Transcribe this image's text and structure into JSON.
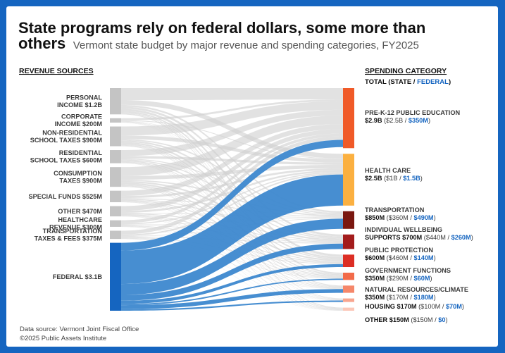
{
  "title": {
    "bold": "State programs rely on federal dollars, some more than others",
    "bold_line1": "State programs rely on federal dollars, some more than",
    "bold_line2": "others",
    "subtitle": "Vermont state budget by major revenue and spending categories, FY2025"
  },
  "left_header": "REVENUE SOURCES",
  "right_header": "SPENDING CATEGORY",
  "total_label": {
    "prefix": "TOTAL (",
    "state": "STATE",
    "sep": " / ",
    "federal": "FEDERAL",
    "suffix": ")"
  },
  "footer": {
    "source": "Data source: Vermont Joint Fiscal Office",
    "copyright": "©2025 Public Assets Institute"
  },
  "colors": {
    "state_flow": "#d0d0d0",
    "federal_flow": "#3d88cf",
    "state_node": "#c4c4c4",
    "federal_node": "#1565c0",
    "frame": "#1565c0"
  },
  "chart_data": {
    "type": "sankey",
    "units": "USD millions",
    "sources": [
      {
        "name": "PERSONAL INCOME",
        "value_label": "$1.2B",
        "value": 1200,
        "kind": "state",
        "label_lines": [
          "PERSONAL",
          "INCOME $1.2B"
        ]
      },
      {
        "name": "CORPORATE INCOME",
        "value_label": "$200M",
        "value": 200,
        "kind": "state",
        "label_lines": [
          "CORPORATE",
          "INCOME $200M"
        ]
      },
      {
        "name": "NON-RESIDENTIAL SCHOOL TAXES",
        "value_label": "$900M",
        "value": 900,
        "kind": "state",
        "label_lines": [
          "NON-RESIDENTIAL",
          "SCHOOL TAXES $900M"
        ]
      },
      {
        "name": "RESIDENTIAL SCHOOL TAXES",
        "value_label": "$600M",
        "value": 600,
        "kind": "state",
        "label_lines": [
          "RESIDENTIAL",
          "SCHOOL TAXES $600M"
        ]
      },
      {
        "name": "CONSUMPTION TAXES",
        "value_label": "$900M",
        "value": 900,
        "kind": "state",
        "label_lines": [
          "CONSUMPTION",
          "TAXES $900M"
        ]
      },
      {
        "name": "SPECIAL FUNDS",
        "value_label": "$525M",
        "value": 525,
        "kind": "state",
        "label_lines": [
          "SPECIAL FUNDS $525M"
        ]
      },
      {
        "name": "OTHER",
        "value_label": "$470M",
        "value": 470,
        "kind": "state",
        "label_lines": [
          "OTHER $470M"
        ]
      },
      {
        "name": "HEALTHCARE REVENUE",
        "value_label": "$300M",
        "value": 300,
        "kind": "state",
        "label_lines": [
          "HEALTHCARE",
          "REVENUE $300M"
        ]
      },
      {
        "name": "TRANSPORTATION TAXES & FEES",
        "value_label": "$375M",
        "value": 375,
        "kind": "state",
        "label_lines": [
          "TRANSPORTATION",
          "TAXES & FEES $375M"
        ]
      },
      {
        "name": "FEDERAL",
        "value_label": "$3.1B",
        "value": 3100,
        "kind": "federal",
        "label_lines": [
          "FEDERAL $3.1B"
        ]
      }
    ],
    "targets": [
      {
        "name": "PRE-K-12 PUBLIC EDUCATION",
        "total_label": "$2.9B",
        "state_label": "$2.5B",
        "federal_label": "$350M",
        "total": 2900,
        "state": 2500,
        "federal": 350,
        "color": "#f05a28",
        "name_lines": [
          "PRE-K-12 PUBLIC EDUCATION"
        ]
      },
      {
        "name": "HEALTH CARE",
        "total_label": "$2.5B",
        "state_label": "$1B",
        "federal_label": "$1.5B",
        "total": 2500,
        "state": 1000,
        "federal": 1500,
        "color": "#fbb040",
        "name_lines": [
          "HEALTH CARE"
        ]
      },
      {
        "name": "TRANSPORTATION",
        "total_label": "$850M",
        "state_label": "$360M",
        "federal_label": "$490M",
        "total": 850,
        "state": 360,
        "federal": 490,
        "color": "#7a1710",
        "name_lines": [
          "TRANSPORTATION"
        ]
      },
      {
        "name": "INDIVIDUAL WELLBEING SUPPORTS",
        "total_label": "$700M",
        "state_label": "$440M",
        "federal_label": "$260M",
        "total": 700,
        "state": 440,
        "federal": 260,
        "color": "#a31c1c",
        "name_lines": [
          "INDIVIDUAL WELLBEING",
          "SUPPORTS"
        ]
      },
      {
        "name": "PUBLIC PROTECTION",
        "total_label": "$600M",
        "state_label": "$460M",
        "federal_label": "$140M",
        "total": 600,
        "state": 460,
        "federal": 140,
        "color": "#dc2e24",
        "name_lines": [
          "PUBLIC PROTECTION"
        ]
      },
      {
        "name": "GOVERNMENT FUNCTIONS",
        "total_label": "$350M",
        "state_label": "$290M",
        "federal_label": "$60M",
        "total": 350,
        "state": 290,
        "federal": 60,
        "color": "#f26b4a",
        "name_lines": [
          "GOVERNMENT FUNCTIONS"
        ]
      },
      {
        "name": "NATURAL RESOURCES/CLIMATE",
        "total_label": "$350M",
        "state_label": "$170M",
        "federal_label": "$180M",
        "total": 350,
        "state": 170,
        "federal": 180,
        "color": "#f5876a",
        "name_lines": [
          "NATURAL RESOURCES/CLIMATE"
        ]
      },
      {
        "name": "HOUSING",
        "total_label": "$170M",
        "state_label": "$100M",
        "federal_label": "$70M",
        "total": 170,
        "state": 100,
        "federal": 70,
        "color": "#f8a58f",
        "name_lines": [
          "HOUSING"
        ]
      },
      {
        "name": "OTHER",
        "total_label": "$150M",
        "state_label": "$150M",
        "federal_label": "$0",
        "total": 150,
        "state": 150,
        "federal": 0,
        "color": "#fbc7b8",
        "name_lines": [
          "OTHER"
        ]
      }
    ]
  }
}
